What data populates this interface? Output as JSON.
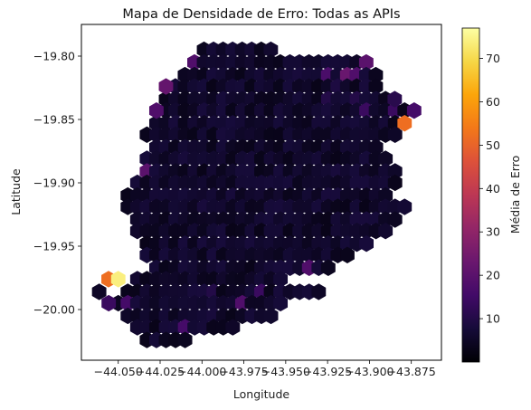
{
  "chart_data": {
    "type": "heatmap",
    "subtype": "hexbin",
    "title": "Mapa de Densidade de Erro: Todas as APIs",
    "xlabel": "Longitude",
    "ylabel": "Latitude",
    "xlim": [
      -44.072,
      -43.857
    ],
    "ylim": [
      -20.04,
      -19.775
    ],
    "xticks": [
      -44.05,
      -44.025,
      -44.0,
      -43.975,
      -43.95,
      -43.925,
      -43.9,
      -43.875
    ],
    "xtick_labels": [
      "−44.050",
      "−44.025",
      "−44.000",
      "−43.975",
      "−43.950",
      "−43.925",
      "−43.900",
      "−43.875"
    ],
    "yticks": [
      -19.8,
      -19.85,
      -19.9,
      -19.95,
      -20.0
    ],
    "ytick_labels": [
      "−19.80",
      "−19.85",
      "−19.90",
      "−19.95",
      "−20.00"
    ],
    "grid": false,
    "colormap": "inferno",
    "colorbar": {
      "label": "Média de Erro",
      "min": 0,
      "max": 77,
      "ticks": [
        10,
        20,
        30,
        40,
        50,
        60,
        70
      ],
      "tick_labels": [
        "10",
        "20",
        "30",
        "40",
        "50",
        "60",
        "70"
      ]
    },
    "background_value": 3,
    "cell_size": [
      0.0057,
      0.0095
    ],
    "rows": [
      {
        "y": -19.795,
        "x_start": -43.9988,
        "x_end": -43.959
      },
      {
        "y": -19.805,
        "x_start": -44.0045,
        "x_end": -43.902
      },
      {
        "y": -19.815,
        "x_start": -44.0102,
        "x_end": -43.8963
      },
      {
        "y": -19.824,
        "x_start": -44.0159,
        "x_end": -43.8963
      },
      {
        "y": -19.834,
        "x_start": -44.0215,
        "x_end": -43.8906
      },
      {
        "y": -19.843,
        "x_start": -44.0215,
        "x_end": -43.8735
      },
      {
        "y": -19.853,
        "x_start": -44.0272,
        "x_end": -43.8792
      },
      {
        "y": -19.862,
        "x_start": -44.0329,
        "x_end": -43.8849
      },
      {
        "y": -19.872,
        "x_start": -44.0272,
        "x_end": -43.8963
      },
      {
        "y": -19.881,
        "x_start": -44.0329,
        "x_end": -43.8906
      },
      {
        "y": -19.891,
        "x_start": -44.0329,
        "x_end": -43.8849
      },
      {
        "y": -19.9,
        "x_start": -44.0386,
        "x_end": -43.8849
      },
      {
        "y": -19.91,
        "x_start": -44.0443,
        "x_end": -43.8906
      },
      {
        "y": -19.919,
        "x_start": -44.0443,
        "x_end": -43.8792
      },
      {
        "y": -19.929,
        "x_start": -44.0386,
        "x_end": -43.8849
      },
      {
        "y": -19.938,
        "x_start": -44.0386,
        "x_end": -43.8906
      },
      {
        "y": -19.948,
        "x_start": -44.0329,
        "x_end": -43.902
      },
      {
        "y": -19.957,
        "x_start": -44.0329,
        "x_end": -43.9134
      },
      {
        "y": -19.967,
        "x_start": -44.0272,
        "x_end": -43.9248
      },
      {
        "y": -19.976,
        "x_start": -44.0386,
        "x_end": -43.9532
      },
      {
        "y": -19.986,
        "x_start": -44.0443,
        "x_end": -43.9304
      },
      {
        "y": -19.995,
        "x_start": -44.05,
        "x_end": -43.9532
      },
      {
        "y": -20.005,
        "x_start": -44.0443,
        "x_end": -43.9589
      },
      {
        "y": -20.014,
        "x_start": -44.0386,
        "x_end": -43.9817
      },
      {
        "y": -20.024,
        "x_start": -44.0329,
        "x_end": -44.0102
      }
    ],
    "highlights": [
      {
        "x": -44.0558,
        "y": -19.976,
        "value": 52
      },
      {
        "x": -44.05,
        "y": -19.976,
        "value": 74
      },
      {
        "x": -44.0614,
        "y": -19.986,
        "value": 5
      },
      {
        "x": -44.0557,
        "y": -19.995,
        "value": 14
      },
      {
        "x": -44.0443,
        "y": -19.995,
        "value": 16
      },
      {
        "x": -44.0102,
        "y": -20.014,
        "value": 16
      },
      {
        "x": -44.0329,
        "y": -19.891,
        "value": 20
      },
      {
        "x": -44.0272,
        "y": -19.843,
        "value": 18
      },
      {
        "x": -44.0215,
        "y": -19.824,
        "value": 22
      },
      {
        "x": -44.0045,
        "y": -19.805,
        "value": 18
      },
      {
        "x": -43.9988,
        "y": -19.986,
        "value": 8
      },
      {
        "x": -43.9931,
        "y": -19.986,
        "value": 10
      },
      {
        "x": -43.9761,
        "y": -19.995,
        "value": 18
      },
      {
        "x": -43.9647,
        "y": -19.986,
        "value": 14
      },
      {
        "x": -43.9362,
        "y": -19.967,
        "value": 18
      },
      {
        "x": -43.902,
        "y": -19.805,
        "value": 20
      },
      {
        "x": -43.9077,
        "y": -19.815,
        "value": 18
      },
      {
        "x": -43.9134,
        "y": -19.815,
        "value": 23
      },
      {
        "x": -43.9248,
        "y": -19.815,
        "value": 17
      },
      {
        "x": -43.902,
        "y": -19.843,
        "value": 14
      },
      {
        "x": -43.8849,
        "y": -19.843,
        "value": 14
      },
      {
        "x": -43.8735,
        "y": -19.843,
        "value": 16
      },
      {
        "x": -43.8792,
        "y": -19.853,
        "value": 52
      },
      {
        "x": -43.8849,
        "y": -19.834,
        "value": 11
      },
      {
        "x": -43.9077,
        "y": -19.834,
        "value": 10
      },
      {
        "x": -43.9248,
        "y": -19.834,
        "value": 10
      },
      {
        "x": -43.902,
        "y": -19.824,
        "value": 8
      },
      {
        "x": -43.9191,
        "y": -19.824,
        "value": 9
      },
      {
        "x": -44.0045,
        "y": -19.938,
        "value": 9
      },
      {
        "x": -43.9988,
        "y": -19.919,
        "value": 8
      }
    ]
  }
}
